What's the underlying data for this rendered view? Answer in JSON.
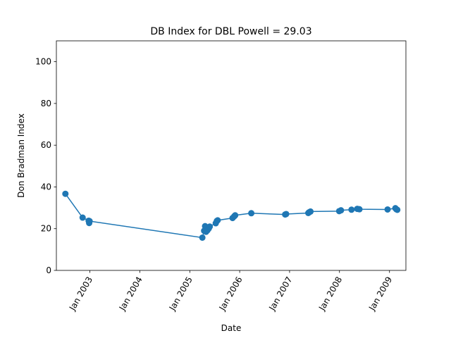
{
  "chart_data": {
    "type": "line",
    "title": "DB Index for DBL Powell = 29.03",
    "xlabel": "Date",
    "ylabel": "Don Bradman Index",
    "xlim": [
      "2002-05-01",
      "2009-05-01"
    ],
    "ylim": [
      0,
      110
    ],
    "yticks": [
      0,
      20,
      40,
      60,
      80,
      100
    ],
    "xticks": [
      {
        "date": "2003-01-01",
        "label": "Jan 2003"
      },
      {
        "date": "2004-01-01",
        "label": "Jan 2004"
      },
      {
        "date": "2005-01-01",
        "label": "Jan 2005"
      },
      {
        "date": "2006-01-01",
        "label": "Jan 2006"
      },
      {
        "date": "2007-01-01",
        "label": "Jan 2007"
      },
      {
        "date": "2008-01-01",
        "label": "Jan 2008"
      },
      {
        "date": "2009-01-01",
        "label": "Jan 2009"
      }
    ],
    "grid": false,
    "line_color": "#1f77b4",
    "series": [
      {
        "points": [
          {
            "x": "2002-07-06",
            "y": 36.7
          },
          {
            "x": "2002-11-09",
            "y": 25.3
          },
          {
            "x": "2002-12-23",
            "y": 23.8
          },
          {
            "x": "2002-12-27",
            "y": 22.7
          },
          {
            "x": "2002-12-30",
            "y": 23.6
          },
          {
            "x": "2005-04-03",
            "y": 15.7
          },
          {
            "x": "2005-04-16",
            "y": 19.0
          },
          {
            "x": "2005-04-23",
            "y": 21.2
          },
          {
            "x": "2005-04-30",
            "y": 18.5
          },
          {
            "x": "2005-05-10",
            "y": 19.2
          },
          {
            "x": "2005-05-20",
            "y": 20.1
          },
          {
            "x": "2005-05-27",
            "y": 21.0
          },
          {
            "x": "2005-07-10",
            "y": 22.6
          },
          {
            "x": "2005-07-18",
            "y": 23.7
          },
          {
            "x": "2005-07-24",
            "y": 24.0
          },
          {
            "x": "2005-11-10",
            "y": 25.1
          },
          {
            "x": "2005-11-22",
            "y": 25.9
          },
          {
            "x": "2005-11-29",
            "y": 26.4
          },
          {
            "x": "2006-03-27",
            "y": 27.4
          },
          {
            "x": "2006-11-30",
            "y": 26.8
          },
          {
            "x": "2006-12-07",
            "y": 27.0
          },
          {
            "x": "2007-05-18",
            "y": 27.5
          },
          {
            "x": "2007-05-25",
            "y": 27.9
          },
          {
            "x": "2007-06-03",
            "y": 28.2
          },
          {
            "x": "2007-12-30",
            "y": 28.4
          },
          {
            "x": "2008-01-12",
            "y": 28.8
          },
          {
            "x": "2008-03-29",
            "y": 29.1
          },
          {
            "x": "2008-05-10",
            "y": 29.5
          },
          {
            "x": "2008-05-26",
            "y": 29.3
          },
          {
            "x": "2008-12-18",
            "y": 29.2
          },
          {
            "x": "2009-02-13",
            "y": 29.8
          },
          {
            "x": "2009-02-20",
            "y": 29.3
          },
          {
            "x": "2009-02-27",
            "y": 29.03
          }
        ]
      }
    ]
  }
}
